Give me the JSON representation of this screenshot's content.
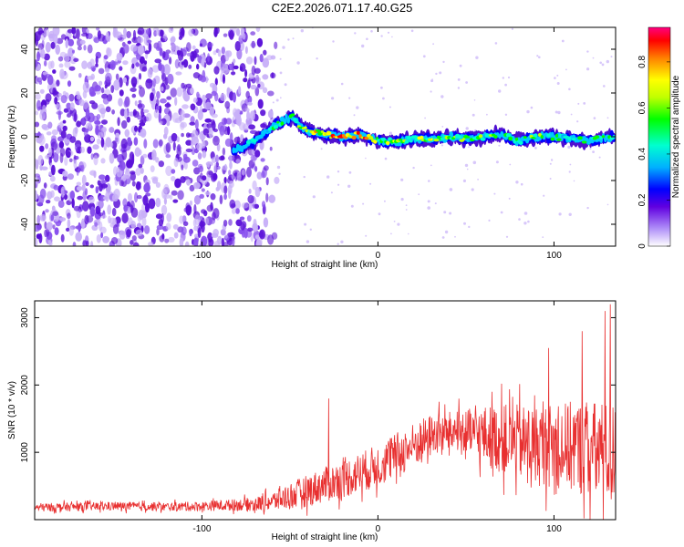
{
  "title": "C2E2.2026.071.17.40.G25",
  "chart_data": [
    {
      "type": "heatmap",
      "name": "spectrogram",
      "xlabel": "Height of straight line (km)",
      "ylabel": "Frequency (Hz)",
      "xlim": [
        -195,
        135
      ],
      "ylim": [
        -50,
        50
      ],
      "xticks": [
        -100,
        0,
        100
      ],
      "yticks": [
        -40,
        -20,
        0,
        20,
        40
      ],
      "colorbar": {
        "label": "Normalized spectral amplitude",
        "range": [
          0,
          0.95
        ],
        "ticks": [
          0,
          0.2,
          0.4,
          0.6,
          0.8
        ],
        "colors": [
          "#ffffff",
          "#a070f0",
          "#5000d0",
          "#0000ff",
          "#00c0ff",
          "#00ffc0",
          "#00ff00",
          "#c0ff00",
          "#ffff00",
          "#ff8000",
          "#ff0000",
          "#ff00a0"
        ]
      },
      "signal_track": {
        "x": [
          -82,
          -75,
          -68,
          -62,
          -57,
          -52,
          -48,
          -44,
          -40,
          -36,
          -30,
          -20,
          -10,
          0,
          10,
          20,
          30,
          40,
          50,
          60,
          70,
          80,
          90,
          100,
          110,
          120,
          130
        ],
        "freq": [
          -6,
          -4,
          -1,
          3,
          6,
          8,
          9,
          5,
          3,
          2,
          1,
          0,
          1,
          -2,
          -2,
          -1,
          -1,
          0,
          -1,
          0,
          1,
          -2,
          0,
          0,
          -1,
          -2,
          0
        ],
        "amplitude": [
          0.3,
          0.35,
          0.4,
          0.45,
          0.5,
          0.55,
          0.5,
          0.55,
          0.65,
          0.75,
          0.8,
          0.9,
          0.85,
          0.6,
          0.7,
          0.65,
          0.7,
          0.6,
          0.55,
          0.6,
          0.5,
          0.55,
          0.6,
          0.5,
          0.45,
          0.5,
          0.45
        ]
      },
      "noise_region": {
        "x": [
          -195,
          -60
        ],
        "amplitude": [
          0.05,
          0.35
        ]
      }
    },
    {
      "type": "line",
      "name": "snr",
      "xlabel": "Height of straight line (km)",
      "ylabel": "SNR (10 * v/v)",
      "xlim": [
        -195,
        135
      ],
      "ylim": [
        0,
        3250
      ],
      "xticks": [
        -100,
        0,
        100
      ],
      "yticks": [
        1000,
        2000,
        3000
      ],
      "color": "#e83030",
      "envelope": {
        "x": [
          -195,
          -150,
          -120,
          -100,
          -80,
          -70,
          -60,
          -50,
          -40,
          -30,
          -20,
          -10,
          0,
          10,
          20,
          30,
          40,
          50,
          60,
          70,
          80,
          90,
          100,
          110,
          120,
          130,
          135
        ],
        "mean": [
          180,
          200,
          190,
          200,
          220,
          230,
          270,
          350,
          430,
          520,
          600,
          700,
          800,
          950,
          1100,
          1250,
          1300,
          1280,
          1250,
          1200,
          1150,
          1100,
          1100,
          1080,
          1050,
          1000,
          1000
        ],
        "amp": [
          80,
          80,
          80,
          90,
          110,
          130,
          180,
          250,
          300,
          330,
          360,
          380,
          400,
          420,
          420,
          400,
          380,
          450,
          550,
          650,
          700,
          750,
          800,
          850,
          900,
          950,
          950
        ]
      },
      "peaks": [
        {
          "x": -28,
          "y": 1800
        },
        {
          "x": 45,
          "y": 1600
        },
        {
          "x": 97,
          "y": 2550
        },
        {
          "x": 116,
          "y": 2800
        },
        {
          "x": 129,
          "y": 3100
        },
        {
          "x": 132,
          "y": 3200
        }
      ]
    }
  ]
}
